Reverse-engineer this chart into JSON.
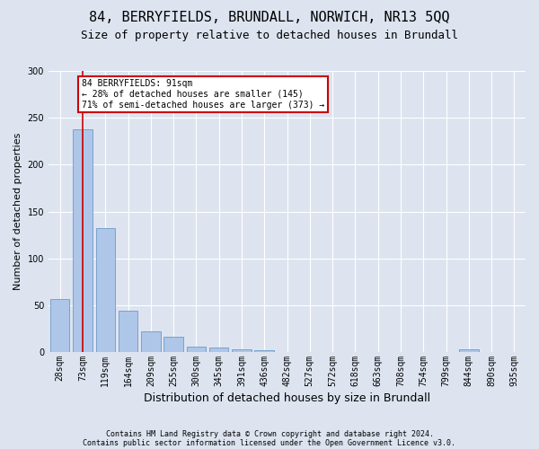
{
  "title1": "84, BERRYFIELDS, BRUNDALL, NORWICH, NR13 5QQ",
  "title2": "Size of property relative to detached houses in Brundall",
  "xlabel": "Distribution of detached houses by size in Brundall",
  "ylabel": "Number of detached properties",
  "footer1": "Contains HM Land Registry data © Crown copyright and database right 2024.",
  "footer2": "Contains public sector information licensed under the Open Government Licence v3.0.",
  "bin_labels": [
    "28sqm",
    "73sqm",
    "119sqm",
    "164sqm",
    "209sqm",
    "255sqm",
    "300sqm",
    "345sqm",
    "391sqm",
    "436sqm",
    "482sqm",
    "527sqm",
    "572sqm",
    "618sqm",
    "663sqm",
    "708sqm",
    "754sqm",
    "799sqm",
    "844sqm",
    "890sqm",
    "935sqm"
  ],
  "bar_values": [
    57,
    238,
    132,
    44,
    22,
    16,
    6,
    5,
    3,
    2,
    0,
    0,
    0,
    0,
    0,
    0,
    0,
    0,
    3,
    0,
    0
  ],
  "bar_color": "#aec6e8",
  "bar_edge_color": "#5a8fc2",
  "vline_x": 1,
  "annotation_text": "84 BERRYFIELDS: 91sqm\n← 28% of detached houses are smaller (145)\n71% of semi-detached houses are larger (373) →",
  "annotation_box_color": "#ffffff",
  "annotation_box_edge": "#cc0000",
  "vline_color": "#cc0000",
  "ylim": [
    0,
    300
  ],
  "yticks": [
    0,
    50,
    100,
    150,
    200,
    250,
    300
  ],
  "background_color": "#dde4f0",
  "axes_background": "#dde4f0",
  "grid_color": "#ffffff",
  "title1_fontsize": 11,
  "title2_fontsize": 9,
  "ylabel_fontsize": 8,
  "xlabel_fontsize": 9,
  "tick_fontsize": 7,
  "footer_fontsize": 6,
  "annotation_fontsize": 7
}
